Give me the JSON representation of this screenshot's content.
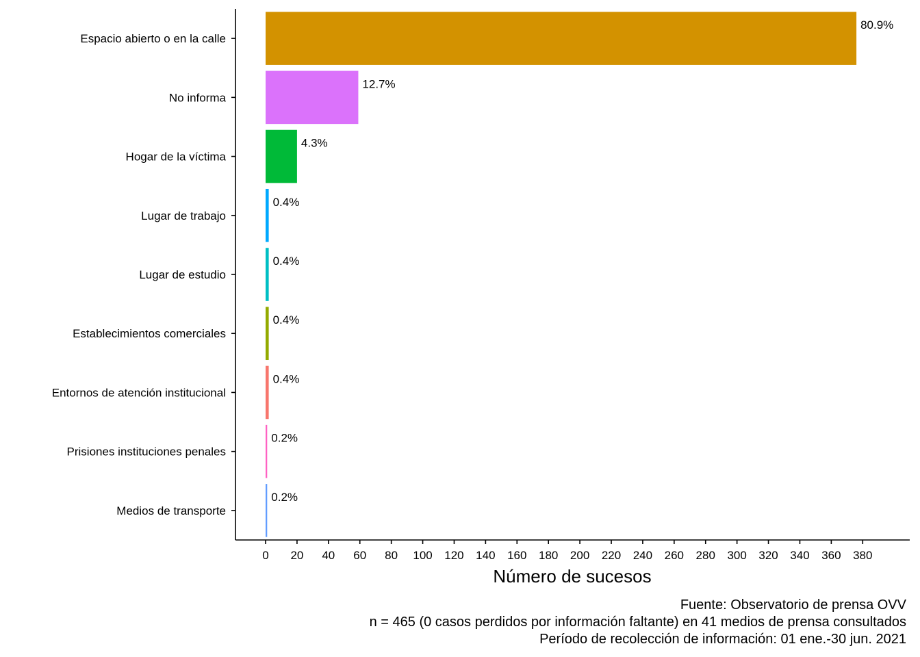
{
  "chart_data": {
    "type": "bar",
    "orientation": "horizontal",
    "categories": [
      "Espacio abierto o en la calle",
      "No informa",
      "Hogar de la víctima",
      "Lugar de trabajo",
      "Lugar de estudio",
      "Establecimientos comerciales",
      "Entornos de atención institucional",
      "Prisiones instituciones penales",
      "Medios de transporte"
    ],
    "values": [
      376,
      59,
      20,
      2,
      2,
      2,
      2,
      1,
      1
    ],
    "labels": [
      "80.9%",
      "12.7%",
      "4.3%",
      "0.4%",
      "0.4%",
      "0.4%",
      "0.4%",
      "0.2%",
      "0.2%"
    ],
    "colors": [
      "#D39200",
      "#DB72FB",
      "#00BA38",
      "#00A9FF",
      "#00BFC4",
      "#93AA00",
      "#F8766D",
      "#FF61C3",
      "#619CFF"
    ],
    "xlabel": "Número de sucesos",
    "xticks": [
      0,
      20,
      40,
      60,
      80,
      100,
      120,
      140,
      160,
      180,
      200,
      220,
      240,
      260,
      280,
      300,
      320,
      340,
      360,
      380
    ],
    "xlim": [
      -19,
      410
    ],
    "grid": false,
    "legend": "none",
    "caption": [
      "Fuente: Observatorio de prensa OVV",
      "n = 465 (0 casos perdidos por información faltante) en 41 medios de prensa consultados",
      "Período de recolección de información: 01 ene.-30 jun. 2021"
    ]
  }
}
